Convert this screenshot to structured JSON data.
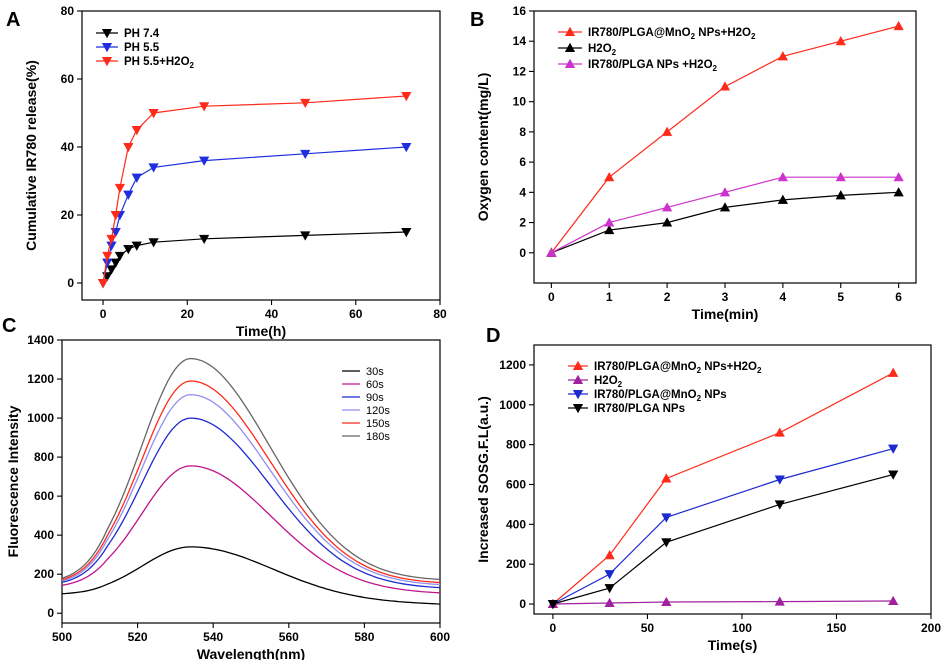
{
  "figure_title": "",
  "chart_data": [
    {
      "panel": "A",
      "type": "line",
      "title": "",
      "xlabel": "Time(h)",
      "ylabel": "Cumulative IR780 release(%)",
      "xlim": [
        -5,
        80
      ],
      "ylim": [
        -5,
        80
      ],
      "xticks": [
        0,
        20,
        40,
        60,
        80
      ],
      "yticks": [
        0,
        20,
        40,
        60,
        80
      ],
      "legend": "top-left",
      "series": [
        {
          "name": "PH 7.4",
          "color": "#000000",
          "marker": "tri-down",
          "x": [
            0,
            1,
            2,
            3,
            4,
            6,
            8,
            12,
            24,
            48,
            72
          ],
          "y": [
            0,
            2,
            4,
            6,
            8,
            10,
            11,
            12,
            13,
            14,
            15
          ]
        },
        {
          "name": "PH 5.5",
          "color": "#1f2fe0",
          "marker": "tri-down",
          "x": [
            0,
            1,
            2,
            3,
            4,
            6,
            8,
            12,
            24,
            48,
            72
          ],
          "y": [
            0,
            6,
            11,
            15,
            20,
            26,
            31,
            34,
            36,
            38,
            40
          ]
        },
        {
          "name": "PH 5.5+H2O2",
          "color": "#ff2a1a",
          "marker": "tri-down",
          "x": [
            0,
            1,
            2,
            3,
            4,
            6,
            8,
            12,
            24,
            48,
            72
          ],
          "y": [
            0,
            8,
            13,
            20,
            28,
            40,
            45,
            50,
            52,
            53,
            55
          ]
        }
      ]
    },
    {
      "panel": "B",
      "type": "line",
      "title": "",
      "xlabel": "Time(min)",
      "ylabel": "Oxygen content(mg/L)",
      "xlim": [
        -0.3,
        6.3
      ],
      "ylim": [
        -2,
        16
      ],
      "xticks": [
        0,
        1,
        2,
        3,
        4,
        5,
        6
      ],
      "yticks": [
        0,
        2,
        4,
        6,
        8,
        10,
        12,
        14,
        16
      ],
      "legend": "top-left",
      "series": [
        {
          "name": "IR780/PLGA@MnO2 NPs+H2O2",
          "color": "#ff2a1a",
          "marker": "tri-up",
          "x": [
            0,
            1,
            2,
            3,
            4,
            5,
            6
          ],
          "y": [
            0,
            5,
            8,
            11,
            13,
            14,
            15
          ]
        },
        {
          "name": "H2O2",
          "color": "#000000",
          "marker": "tri-up",
          "x": [
            0,
            1,
            2,
            3,
            4,
            5,
            6
          ],
          "y": [
            0,
            1.5,
            2,
            3,
            3.5,
            3.8,
            4
          ]
        },
        {
          "name": "IR780/PLGA NPs +H2O2",
          "color": "#cc33cc",
          "marker": "tri-up",
          "x": [
            0,
            1,
            2,
            3,
            4,
            5,
            6
          ],
          "y": [
            0,
            2,
            3,
            4,
            5,
            5,
            5
          ]
        }
      ]
    },
    {
      "panel": "C",
      "type": "line",
      "title": "",
      "xlabel": "Wavelength(nm)",
      "ylabel": "Fluorescence Intensity",
      "xlim": [
        500,
        600
      ],
      "ylim": [
        -50,
        1400
      ],
      "xticks": [
        500,
        520,
        540,
        560,
        580,
        600
      ],
      "yticks": [
        0,
        200,
        400,
        600,
        800,
        1000,
        1200,
        1400
      ],
      "legend": "top-right",
      "series": [
        {
          "name": "30s",
          "color": "#000000",
          "peak": 340,
          "start": 95,
          "end": 45
        },
        {
          "name": "60s",
          "color": "#c0148c",
          "peak": 755,
          "start": 130,
          "end": 100
        },
        {
          "name": "90s",
          "color": "#1c2bd0",
          "peak": 1000,
          "start": 140,
          "end": 125
        },
        {
          "name": "120s",
          "color": "#8f8ff0",
          "peak": 1120,
          "start": 145,
          "end": 140
        },
        {
          "name": "150s",
          "color": "#ff2a1a",
          "peak": 1190,
          "start": 150,
          "end": 150
        },
        {
          "name": "180s",
          "color": "#666666",
          "peak": 1305,
          "start": 155,
          "end": 165
        }
      ]
    },
    {
      "panel": "D",
      "type": "line",
      "title": "",
      "xlabel": "Time(s)",
      "ylabel": "Increased SOSG.F.L(a.u.)",
      "xlim": [
        -10,
        200
      ],
      "ylim": [
        -50,
        1300
      ],
      "xticks": [
        0,
        50,
        100,
        150,
        200
      ],
      "yticks": [
        0,
        200,
        400,
        600,
        800,
        1000,
        1200
      ],
      "legend": "top-left",
      "series": [
        {
          "name": "IR780/PLGA@MnO2 NPs+H2O2",
          "color": "#ff2a1a",
          "marker": "tri-up",
          "x": [
            0,
            30,
            60,
            120,
            180
          ],
          "y": [
            0,
            245,
            630,
            860,
            1160
          ]
        },
        {
          "name": "H2O2",
          "color": "#a020a0",
          "marker": "tri-up",
          "x": [
            0,
            30,
            60,
            120,
            180
          ],
          "y": [
            0,
            5,
            10,
            12,
            15
          ]
        },
        {
          "name": "IR780/PLGA@MnO2 NPs",
          "color": "#1c2bd0",
          "marker": "tri-down",
          "x": [
            0,
            30,
            60,
            120,
            180
          ],
          "y": [
            0,
            150,
            435,
            625,
            780
          ]
        },
        {
          "name": "IR780/PLGA NPs",
          "color": "#000000",
          "marker": "tri-down",
          "x": [
            0,
            30,
            60,
            120,
            180
          ],
          "y": [
            0,
            80,
            310,
            500,
            650
          ]
        }
      ]
    }
  ]
}
